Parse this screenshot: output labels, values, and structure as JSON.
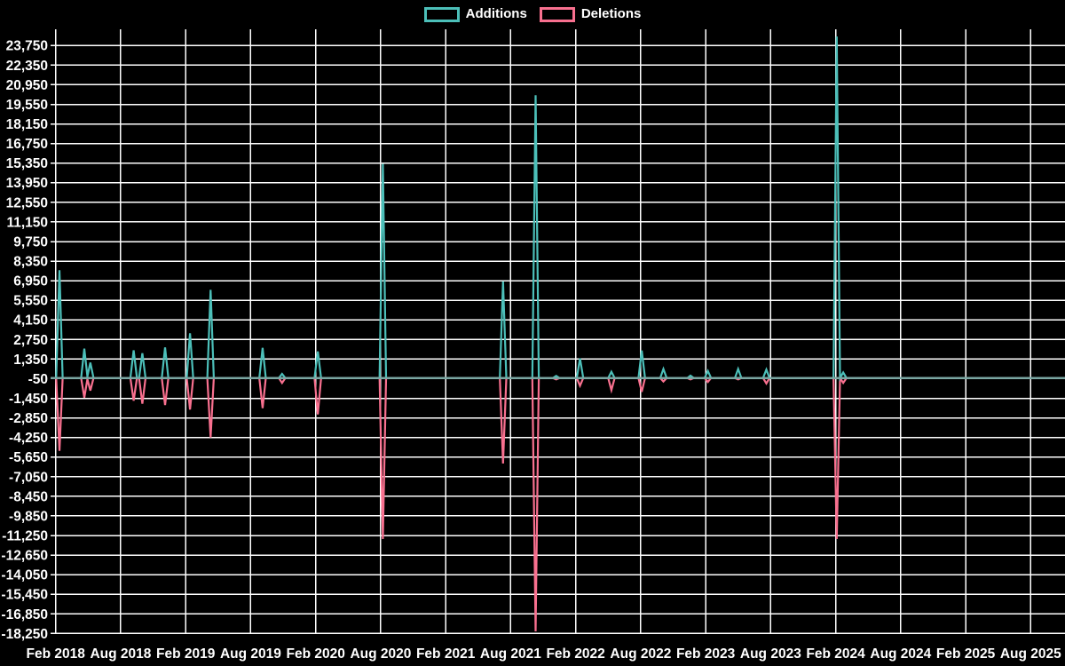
{
  "legend": {
    "items": [
      {
        "label": "Additions",
        "color": "#4cbfb9"
      },
      {
        "label": "Deletions",
        "color": "#f8708f"
      }
    ]
  },
  "chart_data": {
    "type": "line",
    "title": "",
    "xlabel": "",
    "ylabel": "",
    "legend_position": "top-center",
    "grid": true,
    "colors": {
      "background": "#000000",
      "grid": "#ffffff",
      "text": "#ffffff",
      "additions": "#4cbfb9",
      "deletions": "#f8708f",
      "zero_line": "#7aa6a2"
    },
    "x_axis": {
      "tick_labels": [
        "Feb 2018",
        "Aug 2018",
        "Feb 2019",
        "Aug 2019",
        "Feb 2020",
        "Aug 2020",
        "Feb 2021",
        "Aug 2021",
        "Feb 2022",
        "Aug 2022",
        "Feb 2023",
        "Aug 2023",
        "Feb 2024",
        "Aug 2024",
        "Feb 2025",
        "Aug 2025"
      ],
      "tick_months": [
        0,
        6,
        12,
        18,
        24,
        30,
        36,
        42,
        48,
        54,
        60,
        66,
        72,
        78,
        84,
        90
      ],
      "range_months": [
        0,
        93.2
      ]
    },
    "y_axis": {
      "tick_values": [
        23750,
        22350,
        20950,
        19550,
        18150,
        16750,
        15350,
        13950,
        12550,
        11150,
        9750,
        8350,
        6950,
        5550,
        4150,
        2750,
        1350,
        -50,
        -1450,
        -2850,
        -4250,
        -5650,
        -7050,
        -8450,
        -9850,
        -11250,
        -12650,
        -14050,
        -15450,
        -16850,
        -18250
      ],
      "tick_labels": [
        "23,750",
        "22,350",
        "20,950",
        "19,550",
        "18,150",
        "16,750",
        "15,350",
        "13,950",
        "12,550",
        "11,150",
        "9,750",
        "8,350",
        "6,950",
        "5,550",
        "4,150",
        "2,750",
        "1,350",
        "-50",
        "-1,450",
        "-2,850",
        "-4,250",
        "-5,650",
        "-7,050",
        "-8,450",
        "-9,850",
        "-11,250",
        "-12,650",
        "-14,050",
        "-15,450",
        "-16,850",
        "-18,250"
      ],
      "tick_step": 1400,
      "max": 23750,
      "min": -18250
    },
    "series": [
      {
        "name": "Additions",
        "key": "additions",
        "color": "#4cbfb9"
      },
      {
        "name": "Deletions",
        "key": "deletions",
        "color": "#f8708f"
      }
    ],
    "spike_half_width_months": 0.3,
    "baseline_value": 0,
    "events": [
      {
        "date": "Feb 2018",
        "month": 0.35,
        "additions": 7700,
        "deletions": -5200
      },
      {
        "date": "Apr 2018",
        "month": 2.65,
        "additions": 2100,
        "deletions": -1400
      },
      {
        "date": "May 2018",
        "month": 3.2,
        "additions": 1100,
        "deletions": -900
      },
      {
        "date": "Sep 2018",
        "month": 7.2,
        "additions": 1980,
        "deletions": -1620
      },
      {
        "date": "Oct 2018",
        "month": 8.0,
        "additions": 1770,
        "deletions": -1830
      },
      {
        "date": "Dec 2018",
        "month": 10.1,
        "additions": 2190,
        "deletions": -1930
      },
      {
        "date": "Feb 2019",
        "month": 12.4,
        "additions": 3200,
        "deletions": -2250
      },
      {
        "date": "Apr 2019",
        "month": 14.3,
        "additions": 6300,
        "deletions": -4250
      },
      {
        "date": "Sep 2019",
        "month": 19.1,
        "additions": 2150,
        "deletions": -2150
      },
      {
        "date": "Nov 2019",
        "month": 20.9,
        "additions": 300,
        "deletions": -350
      },
      {
        "date": "Feb 2020",
        "month": 24.2,
        "additions": 1900,
        "deletions": -2600
      },
      {
        "date": "Aug 2020",
        "month": 30.2,
        "additions": 15300,
        "deletions": -11500
      },
      {
        "date": "Jul 2021",
        "month": 41.3,
        "additions": 6900,
        "deletions": -6100
      },
      {
        "date": "Oct 2021",
        "month": 44.3,
        "additions": 20200,
        "deletions": -18100
      },
      {
        "date": "Dec 2021",
        "month": 46.2,
        "additions": 150,
        "deletions": -100
      },
      {
        "date": "Feb 2022",
        "month": 48.4,
        "additions": 1400,
        "deletions": -550
      },
      {
        "date": "May 2022",
        "month": 51.3,
        "additions": 450,
        "deletions": -870
      },
      {
        "date": "Aug 2022",
        "month": 54.1,
        "additions": 1960,
        "deletions": -980
      },
      {
        "date": "Oct 2022",
        "month": 56.1,
        "additions": 650,
        "deletions": -250
      },
      {
        "date": "Dec 2022",
        "month": 58.6,
        "additions": 170,
        "deletions": -100
      },
      {
        "date": "Feb 2023",
        "month": 60.2,
        "additions": 500,
        "deletions": -280
      },
      {
        "date": "May 2023",
        "month": 63.0,
        "additions": 650,
        "deletions": -100
      },
      {
        "date": "Aug 2023",
        "month": 65.6,
        "additions": 600,
        "deletions": -390
      },
      {
        "date": "Feb 2024",
        "month": 72.1,
        "additions": 24400,
        "deletions": -11500
      },
      {
        "date": "Mar 2024",
        "month": 72.7,
        "additions": 400,
        "deletions": -340
      }
    ]
  }
}
